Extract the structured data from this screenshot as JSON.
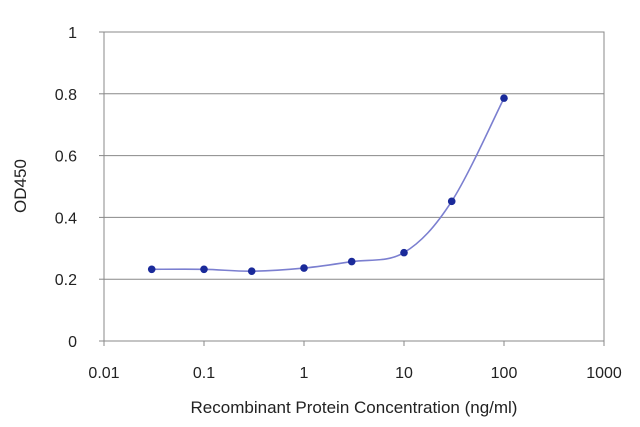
{
  "chart_data": {
    "type": "line",
    "xlabel": "Recombinant Protein Concentration (ng/ml)",
    "ylabel": "OD450",
    "x_scale": "log",
    "xlim": [
      0.01,
      1000
    ],
    "ylim": [
      0,
      1
    ],
    "x_ticks": [
      "0.01",
      "0.1",
      "1",
      "10",
      "100",
      "1000"
    ],
    "y_ticks": [
      "0",
      "0.2",
      "0.4",
      "0.6",
      "0.8",
      "1"
    ],
    "grid": "horizontal",
    "series": [
      {
        "x": [
          0.03,
          0.1,
          0.3,
          1,
          3,
          10,
          30,
          100
        ],
        "y": [
          0.232,
          0.232,
          0.226,
          0.236,
          0.257,
          0.286,
          0.452,
          0.786
        ]
      }
    ],
    "colors": {
      "line": "#7b7fd0",
      "marker": "#1a2a9a",
      "plot_border": "#888888",
      "grid": "#888888"
    }
  }
}
